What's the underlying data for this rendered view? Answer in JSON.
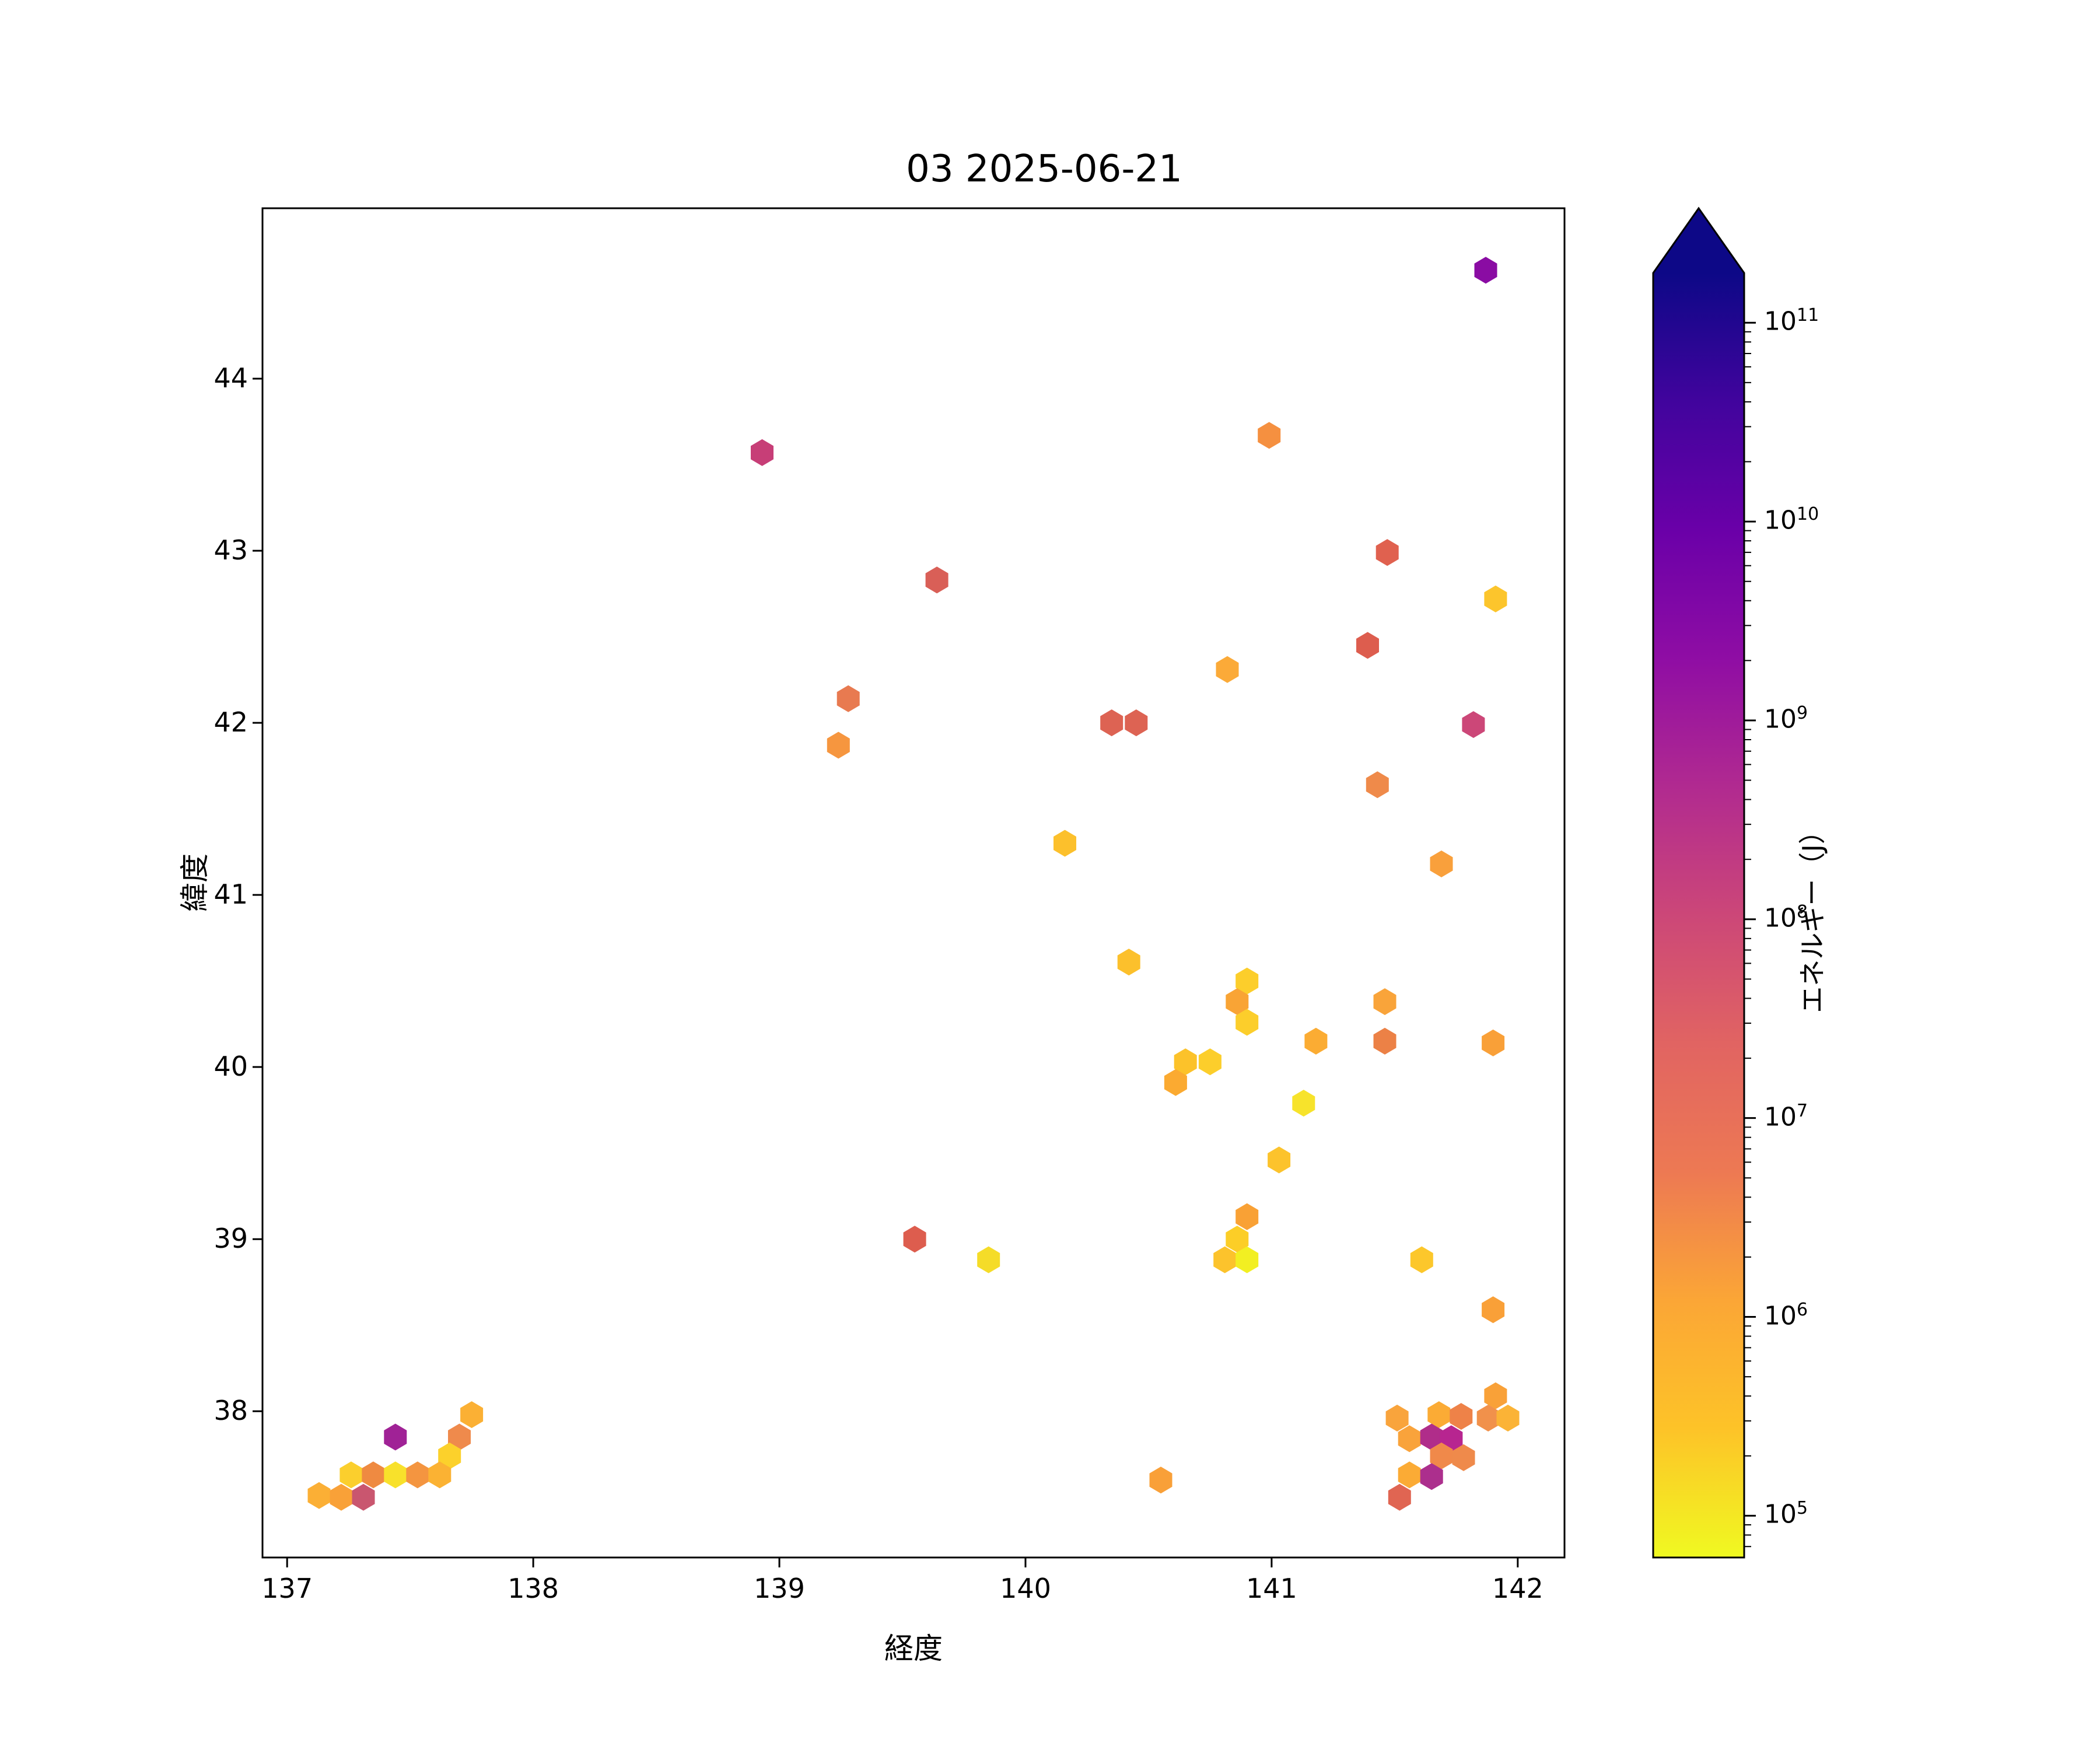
{
  "title": "03 2025-06-21",
  "axes": {
    "xlabel": "経度",
    "ylabel": "緯度",
    "xticks": [
      137,
      138,
      139,
      140,
      141,
      142
    ],
    "yticks": [
      38,
      39,
      40,
      41,
      42,
      43,
      44
    ],
    "xlim": [
      136.9,
      142.19
    ],
    "ylim": [
      37.15,
      44.99
    ]
  },
  "colorbar": {
    "label": "エネルギー（J）",
    "scale": "log",
    "tick_exponents": [
      5,
      6,
      7,
      8,
      9,
      10,
      11
    ],
    "range_log10": [
      4.79,
      11.25
    ],
    "extend": "max",
    "colormap": "plasma_r",
    "gradient_top_to_bottom": [
      "#0d0887",
      "#41049d",
      "#6a00a8",
      "#8f0da4",
      "#b12a90",
      "#cc4778",
      "#e16462",
      "#ed7953",
      "#fba636",
      "#fdc328",
      "#f0f921"
    ]
  },
  "chart_data": {
    "type": "hexbin",
    "title": "03 2025-06-21",
    "xlabel": "経度",
    "ylabel": "緯度",
    "colorbar_label": "エネルギー（J）",
    "value_scale": "log",
    "xlim": [
      136.9,
      142.19
    ],
    "ylim": [
      37.15,
      44.99
    ],
    "legend_position": "right-colorbar",
    "grid": false,
    "points": [
      {
        "lon": 141.87,
        "lat": 44.63,
        "energy_j": 2000000000.0,
        "color": "#8a0ca3"
      },
      {
        "lon": 140.99,
        "lat": 43.67,
        "energy_j": 2000000.0,
        "color": "#f59040"
      },
      {
        "lon": 138.93,
        "lat": 43.57,
        "energy_j": 130000000.0,
        "color": "#c73e77"
      },
      {
        "lon": 141.47,
        "lat": 42.99,
        "energy_j": 16000000.0,
        "color": "#e0614f"
      },
      {
        "lon": 139.64,
        "lat": 42.83,
        "energy_j": 25000000.0,
        "color": "#d95f57"
      },
      {
        "lon": 141.91,
        "lat": 42.72,
        "energy_j": 250000.0,
        "color": "#fcc52c"
      },
      {
        "lon": 141.39,
        "lat": 42.45,
        "energy_j": 20000000.0,
        "color": "#dd5d4e"
      },
      {
        "lon": 140.82,
        "lat": 42.31,
        "energy_j": 700000.0,
        "color": "#fbaa38"
      },
      {
        "lon": 139.28,
        "lat": 42.14,
        "energy_j": 5000000.0,
        "color": "#e87a50"
      },
      {
        "lon": 141.82,
        "lat": 41.99,
        "energy_j": 100000000.0,
        "color": "#cc4778"
      },
      {
        "lon": 140.35,
        "lat": 42.0,
        "energy_j": 18000000.0,
        "color": "#dd6353"
      },
      {
        "lon": 140.45,
        "lat": 42.0,
        "energy_j": 18000000.0,
        "color": "#dd6353"
      },
      {
        "lon": 139.24,
        "lat": 41.87,
        "energy_j": 1800000.0,
        "color": "#f6963f"
      },
      {
        "lon": 141.43,
        "lat": 41.64,
        "energy_j": 3000000.0,
        "color": "#ef8a4a"
      },
      {
        "lon": 140.16,
        "lat": 41.3,
        "energy_j": 300000.0,
        "color": "#fcc02c"
      },
      {
        "lon": 141.69,
        "lat": 41.18,
        "energy_j": 1200000.0,
        "color": "#f9a03c"
      },
      {
        "lon": 140.42,
        "lat": 40.61,
        "energy_j": 300000.0,
        "color": "#fcc02c"
      },
      {
        "lon": 140.9,
        "lat": 40.5,
        "energy_j": 180000.0,
        "color": "#fcce2b"
      },
      {
        "lon": 140.86,
        "lat": 40.38,
        "energy_j": 1000000.0,
        "color": "#f9a435"
      },
      {
        "lon": 140.9,
        "lat": 40.26,
        "energy_j": 180000.0,
        "color": "#fcce2b"
      },
      {
        "lon": 141.46,
        "lat": 40.38,
        "energy_j": 1000000.0,
        "color": "#f9a43a"
      },
      {
        "lon": 141.46,
        "lat": 40.15,
        "energy_j": 3500000.0,
        "color": "#ec8146"
      },
      {
        "lon": 141.18,
        "lat": 40.15,
        "energy_j": 800000.0,
        "color": "#fbac33"
      },
      {
        "lon": 140.65,
        "lat": 40.03,
        "energy_j": 280000.0,
        "color": "#fcc22a"
      },
      {
        "lon": 140.75,
        "lat": 40.03,
        "energy_j": 180000.0,
        "color": "#fcce2b"
      },
      {
        "lon": 140.61,
        "lat": 39.91,
        "energy_j": 700000.0,
        "color": "#fbaa31"
      },
      {
        "lon": 141.13,
        "lat": 39.79,
        "energy_j": 100000.0,
        "color": "#f7e32b"
      },
      {
        "lon": 141.03,
        "lat": 39.46,
        "energy_j": 260000.0,
        "color": "#fcc32c"
      },
      {
        "lon": 140.9,
        "lat": 39.13,
        "energy_j": 1100000.0,
        "color": "#f9a135"
      },
      {
        "lon": 140.86,
        "lat": 39.0,
        "energy_j": 180000.0,
        "color": "#fcce27"
      },
      {
        "lon": 140.81,
        "lat": 38.88,
        "energy_j": 260000.0,
        "color": "#fcc32c"
      },
      {
        "lon": 140.9,
        "lat": 38.88,
        "energy_j": 80000.0,
        "color": "#f2ef22"
      },
      {
        "lon": 141.61,
        "lat": 38.88,
        "energy_j": 220000.0,
        "color": "#fcc72b"
      },
      {
        "lon": 139.55,
        "lat": 39.0,
        "energy_j": 20000000.0,
        "color": "#dd5d4e"
      },
      {
        "lon": 139.85,
        "lat": 38.88,
        "energy_j": 110000.0,
        "color": "#f5dc28"
      },
      {
        "lon": 141.9,
        "lat": 40.14,
        "energy_j": 1200000.0,
        "color": "#f9a038"
      },
      {
        "lon": 141.9,
        "lat": 38.59,
        "energy_j": 1200000.0,
        "color": "#f9a038"
      },
      {
        "lon": 140.55,
        "lat": 37.6,
        "energy_j": 1200000.0,
        "color": "#f9a038"
      },
      {
        "lon": 137.75,
        "lat": 37.98,
        "energy_j": 550000.0,
        "color": "#fbb034"
      },
      {
        "lon": 137.44,
        "lat": 37.85,
        "energy_j": 800000000.0,
        "color": "#a02296"
      },
      {
        "lon": 137.7,
        "lat": 37.85,
        "energy_j": 3000000.0,
        "color": "#ef8a4c"
      },
      {
        "lon": 137.66,
        "lat": 37.74,
        "energy_j": 160000.0,
        "color": "#fcd12b"
      },
      {
        "lon": 137.26,
        "lat": 37.63,
        "energy_j": 170000.0,
        "color": "#fbcf2d"
      },
      {
        "lon": 137.35,
        "lat": 37.63,
        "energy_j": 3000000.0,
        "color": "#ef8a41"
      },
      {
        "lon": 137.44,
        "lat": 37.63,
        "energy_j": 100000.0,
        "color": "#f8e12b"
      },
      {
        "lon": 137.53,
        "lat": 37.63,
        "energy_j": 2000000.0,
        "color": "#f49540"
      },
      {
        "lon": 137.62,
        "lat": 37.63,
        "energy_j": 500000.0,
        "color": "#fbb233"
      },
      {
        "lon": 137.13,
        "lat": 37.51,
        "energy_j": 600000.0,
        "color": "#fbaf35"
      },
      {
        "lon": 137.22,
        "lat": 37.5,
        "energy_j": 1200000.0,
        "color": "#f9a138"
      },
      {
        "lon": 137.31,
        "lat": 37.5,
        "energy_j": 60000000.0,
        "color": "#c9566f"
      },
      {
        "lon": 141.51,
        "lat": 37.96,
        "energy_j": 1000000.0,
        "color": "#f9a43c"
      },
      {
        "lon": 141.68,
        "lat": 37.98,
        "energy_j": 800000.0,
        "color": "#fbab35"
      },
      {
        "lon": 141.77,
        "lat": 37.97,
        "energy_j": 3500000.0,
        "color": "#ee8248"
      },
      {
        "lon": 141.91,
        "lat": 38.09,
        "energy_j": 1200000.0,
        "color": "#f9a138"
      },
      {
        "lon": 141.88,
        "lat": 37.96,
        "energy_j": 2200000.0,
        "color": "#f1914b"
      },
      {
        "lon": 141.96,
        "lat": 37.96,
        "energy_j": 500000.0,
        "color": "#fbb336"
      },
      {
        "lon": 141.56,
        "lat": 37.84,
        "energy_j": 1000000.0,
        "color": "#f9a33b"
      },
      {
        "lon": 141.65,
        "lat": 37.85,
        "energy_j": 400000000.0,
        "color": "#b02d8a"
      },
      {
        "lon": 141.73,
        "lat": 37.84,
        "energy_j": 450000000.0,
        "color": "#b72590"
      },
      {
        "lon": 141.69,
        "lat": 37.74,
        "energy_j": 3000000.0,
        "color": "#f0894a"
      },
      {
        "lon": 141.78,
        "lat": 37.73,
        "energy_j": 3000000.0,
        "color": "#ef8a4b"
      },
      {
        "lon": 141.56,
        "lat": 37.63,
        "energy_j": 800000.0,
        "color": "#fbab35"
      },
      {
        "lon": 141.65,
        "lat": 37.62,
        "energy_j": 400000000.0,
        "color": "#ac2f8d"
      },
      {
        "lon": 141.52,
        "lat": 37.5,
        "energy_j": 10000000.0,
        "color": "#e06552"
      }
    ]
  }
}
